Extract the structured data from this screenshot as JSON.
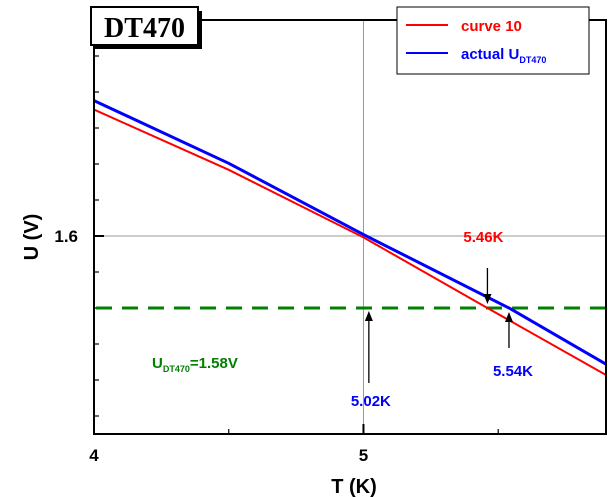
{
  "chart_data": {
    "type": "line",
    "badge": "DT470",
    "xlabel": "T (K)",
    "ylabel": "U (V)",
    "xlim": [
      4,
      5.9
    ],
    "ylim": [
      1.545,
      1.66
    ],
    "x_ticks": [
      4,
      5
    ],
    "x_tick_labels": [
      "4",
      "5"
    ],
    "y_ticks": [
      1.6
    ],
    "y_tick_labels": [
      "1.6"
    ],
    "grid": true,
    "legend_position": "top-right",
    "series": [
      {
        "name": "curve 10",
        "color": "#ff0000",
        "x": [
          4.0,
          4.5,
          5.0,
          5.46,
          5.9
        ],
        "y": [
          1.6351,
          1.6184,
          1.5996,
          1.58,
          1.5614
        ]
      },
      {
        "name": "actual U",
        "name_sub": "DT470",
        "color": "#0000ff",
        "x": [
          4.0,
          4.5,
          5.0,
          5.54,
          5.9
        ],
        "y": [
          1.6376,
          1.6202,
          1.6004,
          1.58,
          1.5644
        ]
      }
    ],
    "reference_line": {
      "y": 1.58,
      "color": "#008000",
      "label_prefix": "U",
      "label_sub": "DT470",
      "label_suffix": "=1.58V"
    },
    "annotations": [
      {
        "text": "5.46K",
        "color": "#ff0000",
        "x": 5.46,
        "y": 1.58
      },
      {
        "text": "5.54K",
        "color": "#0000ff",
        "x": 5.54,
        "y": 1.58
      },
      {
        "text": "5.02K",
        "color": "#0000ff",
        "x": 5.02,
        "y": 1.58
      }
    ]
  }
}
